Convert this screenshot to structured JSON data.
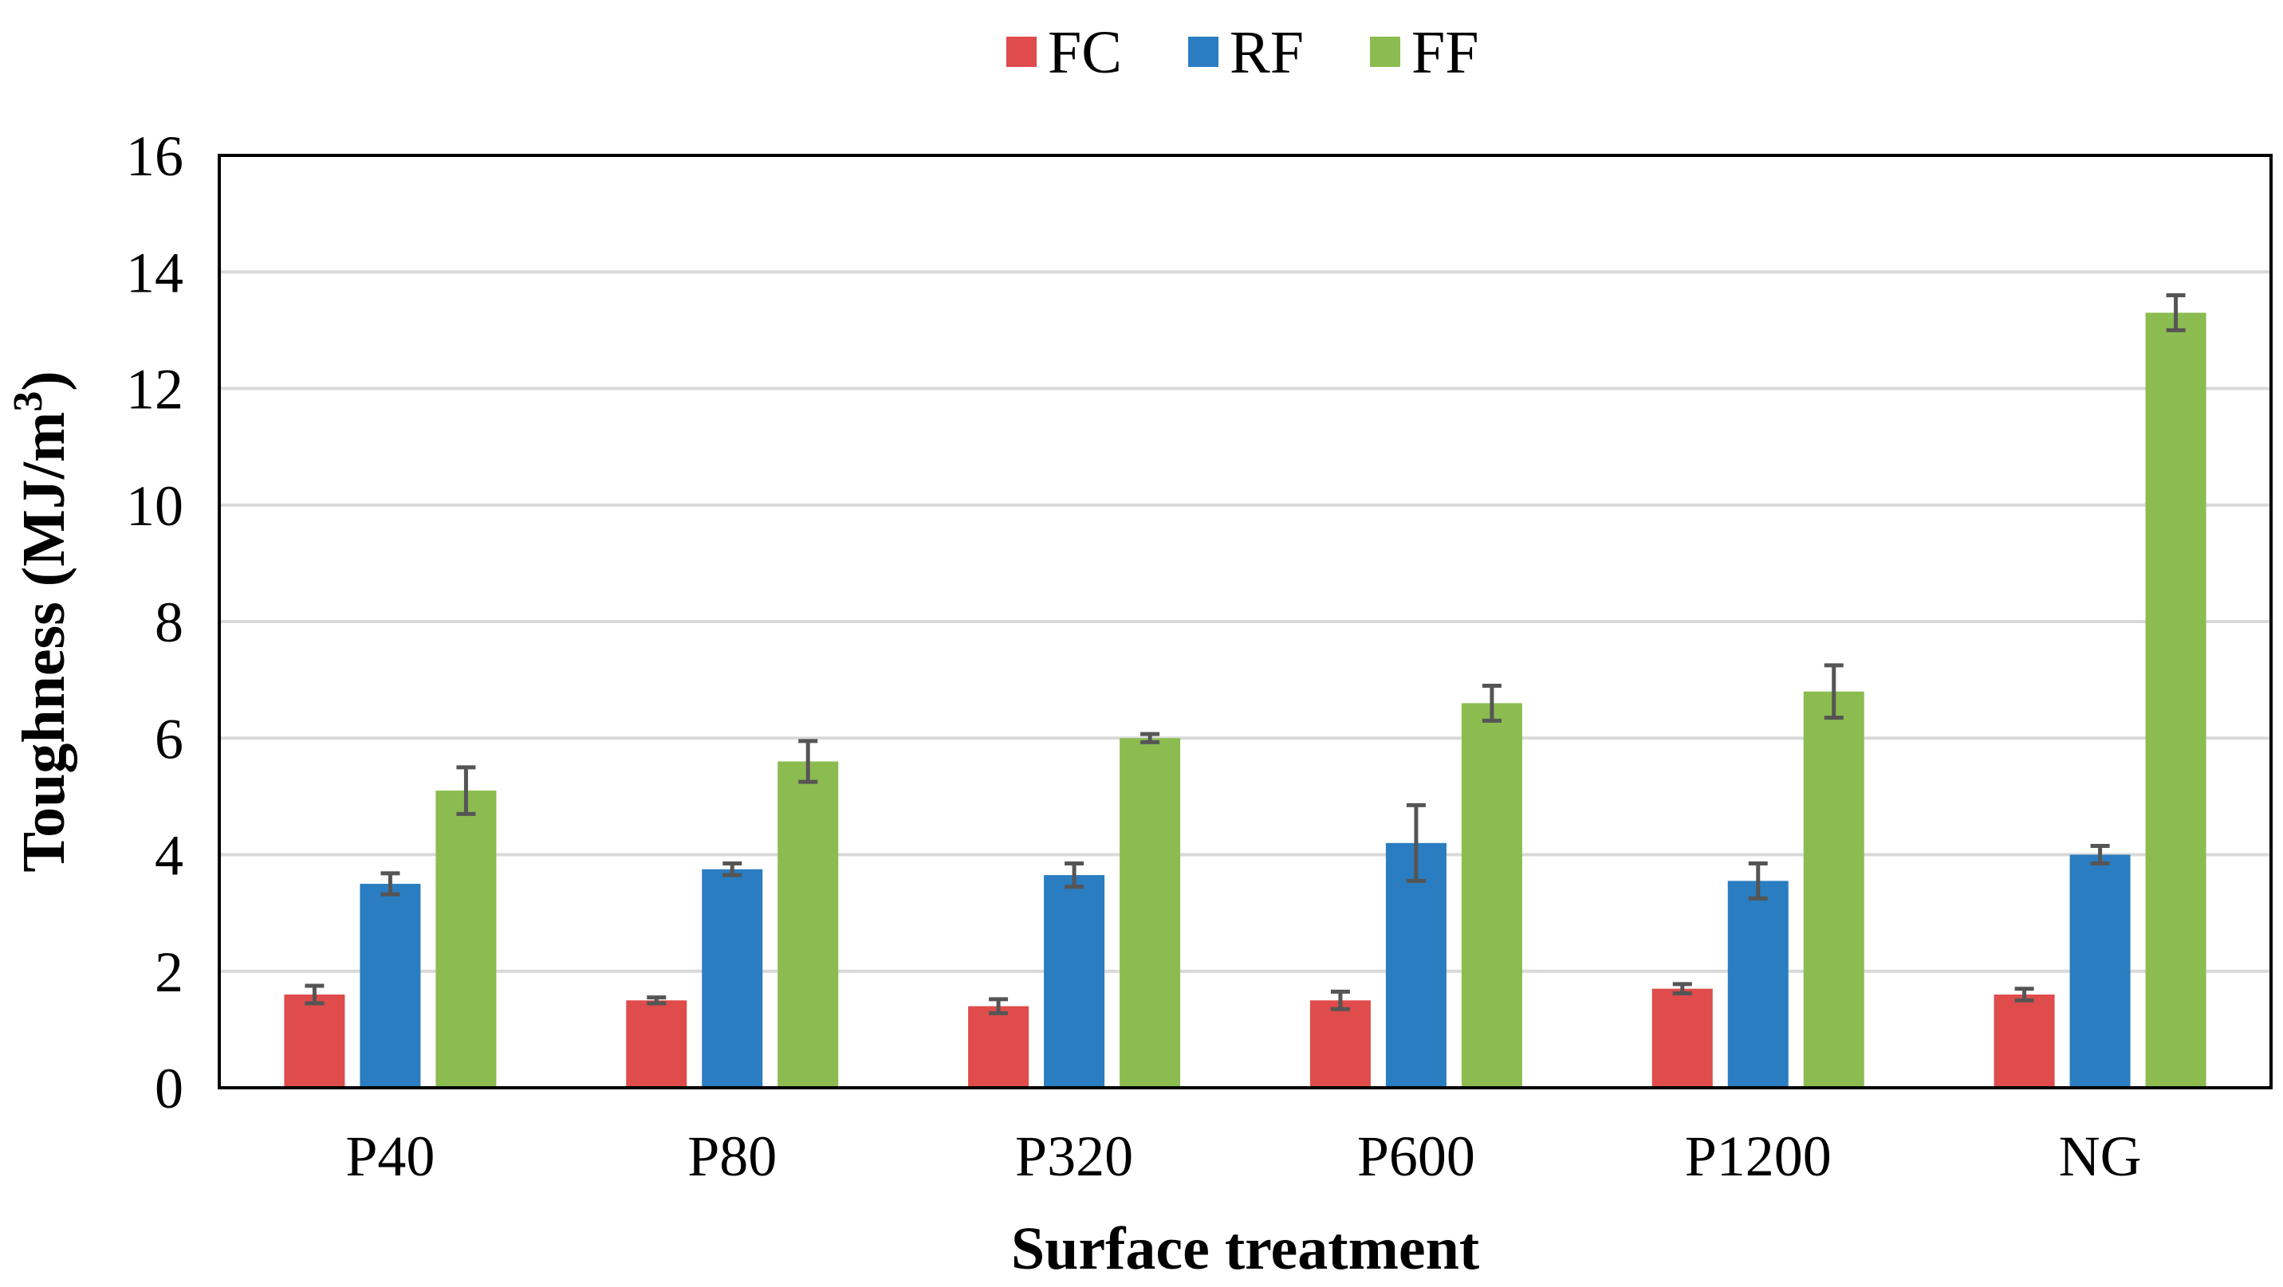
{
  "chart_data": {
    "type": "bar",
    "categories": [
      "P40",
      "P80",
      "P320",
      "P600",
      "P1200",
      "NG"
    ],
    "series": [
      {
        "name": "FC",
        "color": "#E04B4B",
        "values": [
          1.6,
          1.5,
          1.4,
          1.5,
          1.7,
          1.6
        ],
        "error": [
          0.15,
          0.05,
          0.12,
          0.15,
          0.08,
          0.1
        ]
      },
      {
        "name": "RF",
        "color": "#2A7DC0",
        "values": [
          3.5,
          3.75,
          3.65,
          4.2,
          3.55,
          4.0
        ],
        "error": [
          0.18,
          0.1,
          0.2,
          0.65,
          0.3,
          0.15
        ]
      },
      {
        "name": "FF",
        "color": "#8CBC50",
        "values": [
          5.1,
          5.6,
          6.0,
          6.6,
          6.8,
          13.3
        ],
        "error": [
          0.4,
          0.35,
          0.07,
          0.3,
          0.45,
          0.3
        ]
      }
    ],
    "xlabel": "Surface treatment",
    "ylabel_main": "Toughness (MJ/m",
    "ylabel_sup": "3",
    "ylabel_end": ")",
    "ylim": [
      0,
      16
    ],
    "yticks": [
      0,
      2,
      4,
      6,
      8,
      10,
      12,
      14,
      16
    ],
    "grid": true,
    "legend_position": "top-center",
    "error_bar_color": "#555555",
    "grid_color": "#D9D9D9"
  }
}
